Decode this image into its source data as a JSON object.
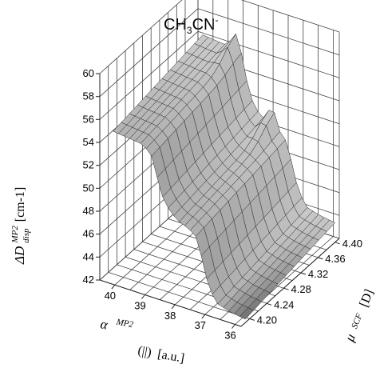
{
  "chart_data": {
    "type": "surface",
    "title": {
      "base": "CH",
      "sub1": "3",
      "mid": "CN",
      "sup": "-"
    },
    "zlabel": {
      "symbol": "ΔD",
      "sup": "MP2",
      "sub": "disp",
      "unit": "[cm-1]"
    },
    "xlabel": {
      "symbol": "α",
      "sup": "MP2",
      "paren": "(||)",
      "unit": "[a.u.]"
    },
    "ylabel": {
      "symbol": "μ",
      "sup": "SCF",
      "unit": "[D]"
    },
    "z_ticks": [
      "42",
      "44",
      "46",
      "48",
      "50",
      "52",
      "54",
      "56",
      "58",
      "60"
    ],
    "x_ticks": [
      "40",
      "39",
      "38",
      "37",
      "36"
    ],
    "y_ticks": [
      "4.20",
      "4.24",
      "4.28",
      "4.32",
      "4.36",
      "4.40"
    ],
    "zlim": [
      42,
      60
    ],
    "xlim": [
      40.5,
      35.8
    ],
    "ylim": [
      4.18,
      4.41
    ],
    "grid": true,
    "surface": {
      "alpha_start": 40.2,
      "alpha_end": 35.8,
      "mu_start": 4.19,
      "mu_end": 4.4,
      "alpha_count": 25,
      "mu_count": 12,
      "profile": [
        {
          "alpha": 40.2,
          "d": 55.6
        },
        {
          "alpha": 39.2,
          "d": 55.3
        },
        {
          "alpha": 38.9,
          "d": 54.5
        },
        {
          "alpha": 38.6,
          "d": 51.5
        },
        {
          "alpha": 38.3,
          "d": 50.2
        },
        {
          "alpha": 38.0,
          "d": 49.6
        },
        {
          "alpha": 37.7,
          "d": 49.3
        },
        {
          "alpha": 37.4,
          "d": 48.7
        },
        {
          "alpha": 37.1,
          "d": 45.5
        },
        {
          "alpha": 36.8,
          "d": 43.6
        },
        {
          "alpha": 36.3,
          "d": 43.2
        },
        {
          "alpha": 35.8,
          "d": 43.0
        }
      ],
      "mu_slope": 3.5,
      "ridge": [
        {
          "alpha": 37.9,
          "mu": 4.4,
          "d": 1.8
        },
        {
          "alpha": 39.1,
          "mu": 4.4,
          "d": 1.6
        }
      ]
    }
  }
}
